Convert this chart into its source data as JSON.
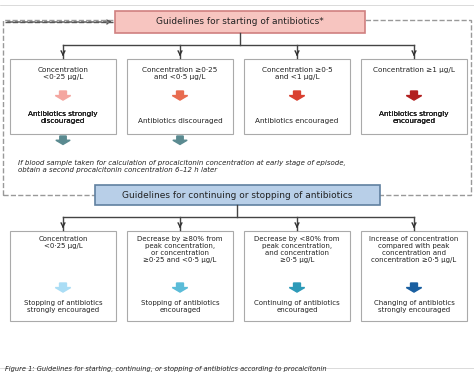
{
  "title_top": "Guidelines for starting of antibiotics*",
  "title_bottom": "Guidelines for continuing or stopping of antibiotics",
  "top_boxes": [
    {
      "conc": "Concentration\n<0·25 μg/L",
      "arrow_color": "#f4a6a0",
      "text_plain": "Antibiotics ",
      "text_bold": "strongly",
      "text_end": "\ndiscouraged"
    },
    {
      "conc": "Concentration ≥0·25\nand <0·5 μg/L",
      "arrow_color": "#e86c50",
      "text_plain": "Antibiotics discouraged",
      "text_bold": "",
      "text_end": ""
    },
    {
      "conc": "Concentration ≥0·5\nand <1 μg/L",
      "arrow_color": "#d94030",
      "text_plain": "Antibiotics encouraged",
      "text_bold": "",
      "text_end": ""
    },
    {
      "conc": "Concentration ≥1 μg/L",
      "arrow_color": "#b22020",
      "text_plain": "Antibiotics ",
      "text_bold": "strongly",
      "text_end": "\nencouraged"
    }
  ],
  "bottom_boxes": [
    {
      "conc": "Concentration\n<0·25 μg/L",
      "arrow_color": "#aaddf5",
      "text_plain": "Stopping of antibiotics\n",
      "text_bold": "strongly",
      "text_end": " encouraged"
    },
    {
      "conc": "Decrease by ≥80% from\npeak concentration,\nor concentration\n≥0·25 and <0·5 μg/L",
      "arrow_color": "#5bbcd8",
      "text_plain": "Stopping of antibiotics\nencouraged",
      "text_bold": "",
      "text_end": ""
    },
    {
      "conc": "Decrease by <80% from\npeak concentration,\nand concentration\n≥0·5 μg/L",
      "arrow_color": "#2d9ab8",
      "text_plain": "Continuing of antibiotics\nencouraged",
      "text_bold": "",
      "text_end": ""
    },
    {
      "conc": "Increase of concentration\ncompared with peak\nconcentration and\nconcentration ≥0·5 μg/L",
      "arrow_color": "#1a5fa0",
      "text_plain": "Changing of antibiotics\n",
      "text_bold": "strongly",
      "text_end": " encouraged"
    }
  ],
  "footnote": "If blood sample taken for calculation of procalcitonin concentration at early stage of episode,\nobtain a second procalcitonin concentration 6–12 h later",
  "figure_caption": "Figure 1: Guidelines for starting, continuing, or stopping of antibiotics according to procalcitonin",
  "top_header_fill": "#f7c5c0",
  "top_header_border": "#d08080",
  "bottom_header_fill": "#b8cfe8",
  "bottom_header_border": "#6080a0",
  "box_border": "#999999",
  "dashed_border": "#aaaaaa",
  "background": "#ffffff"
}
